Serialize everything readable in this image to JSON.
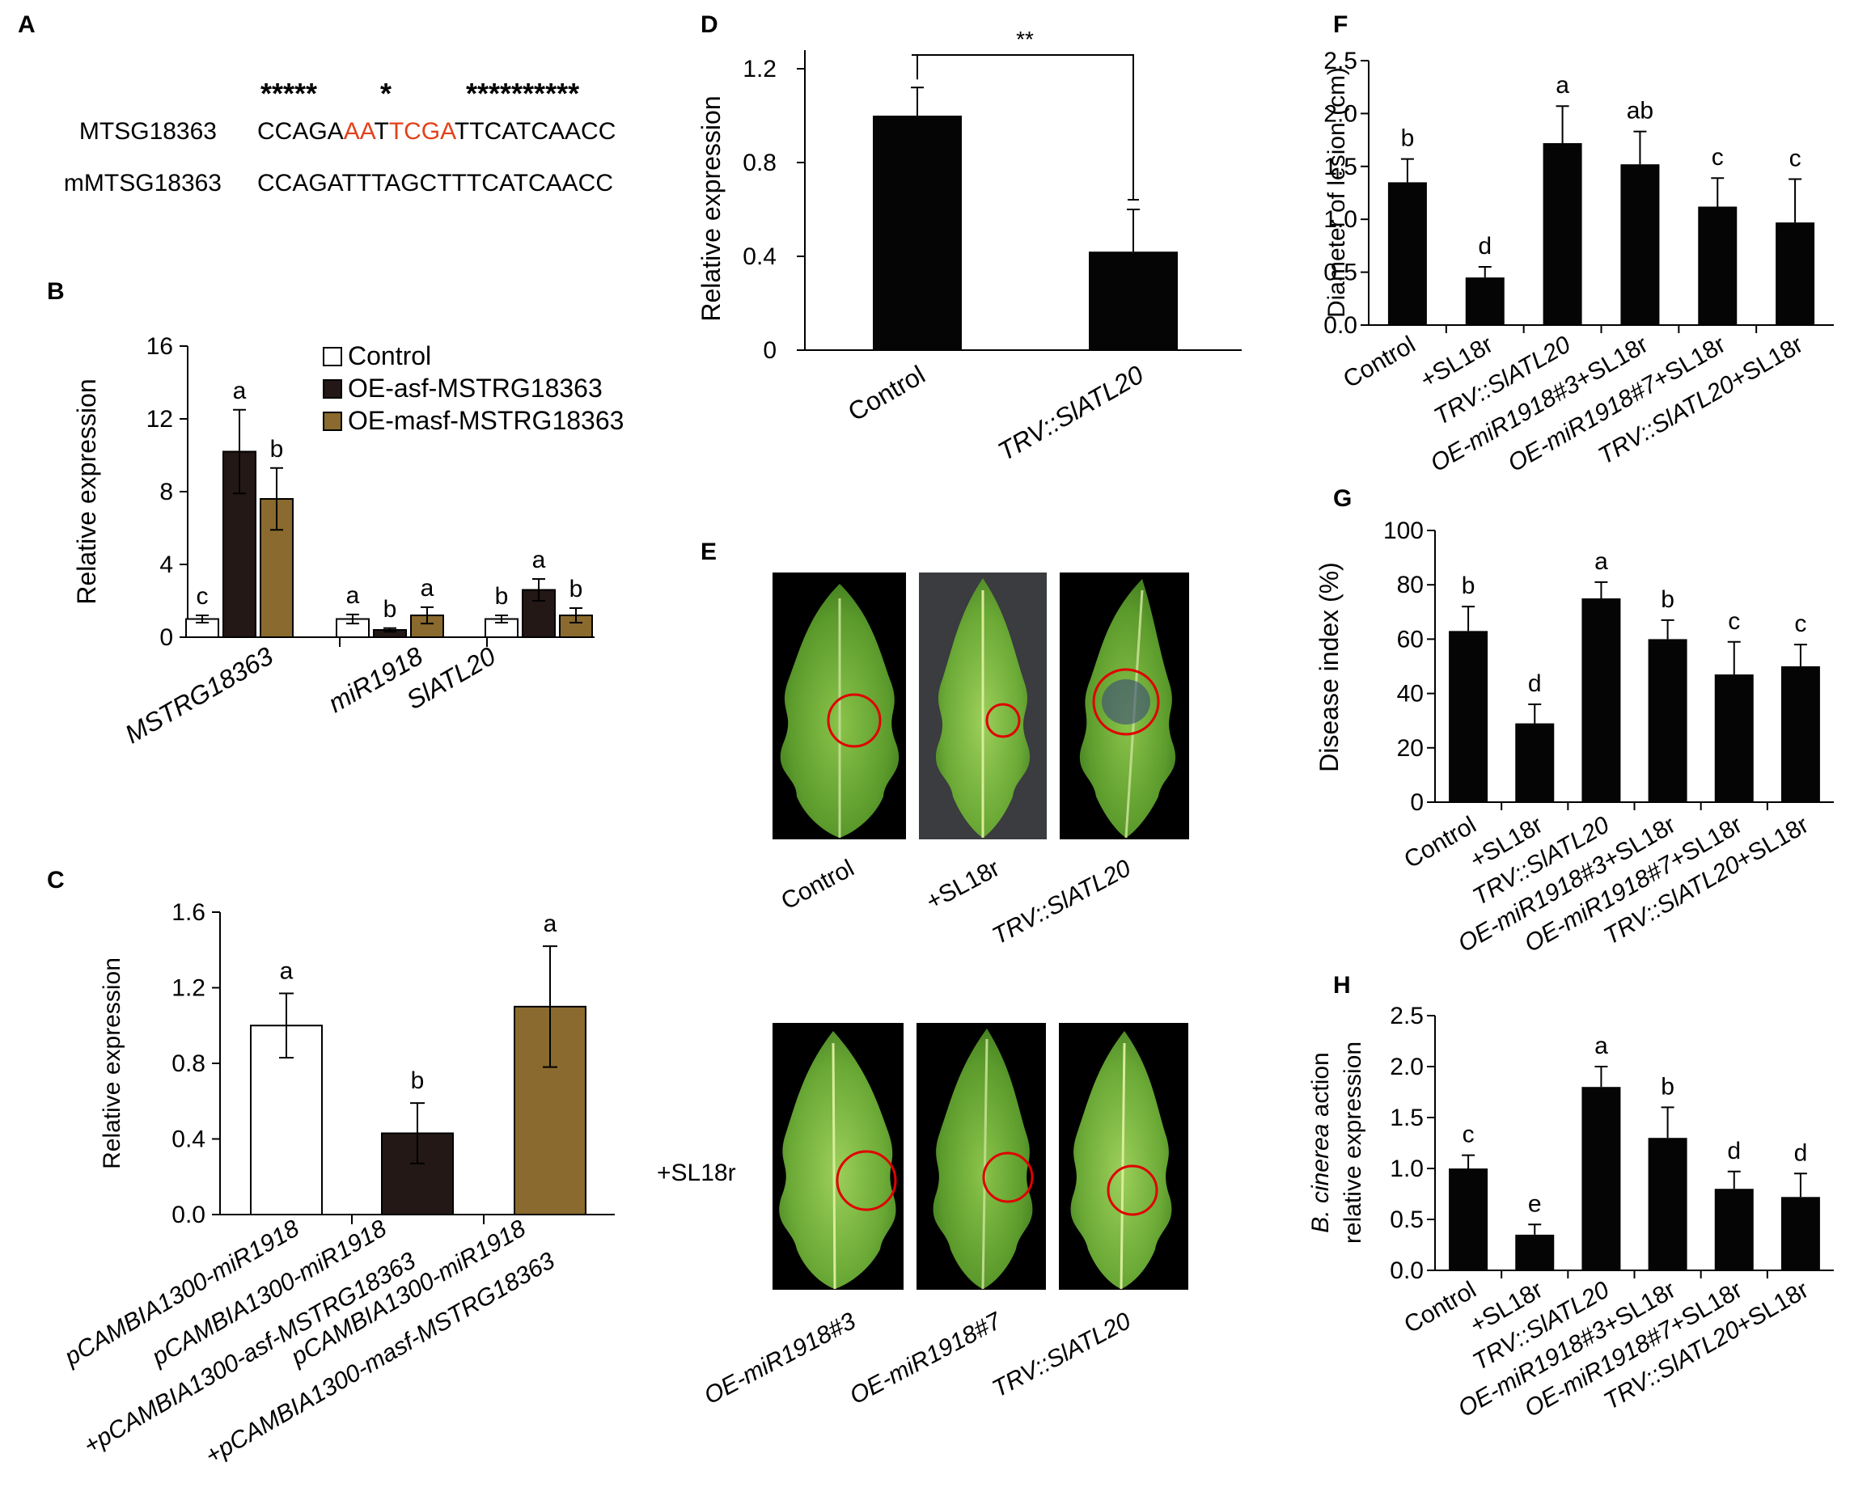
{
  "colors": {
    "control_fill": "#ffffff",
    "asf_fill": "#231816",
    "masf_fill": "#8a6a2e",
    "black_bar": "#050505",
    "highlight_red": "#e2421b",
    "circle_red": "#e00000",
    "photo_bg": "#000000",
    "photo_bg_gray": "#3a3c3f",
    "leaf_green": "#5c9b2c"
  },
  "panel_A": {
    "letter": "A",
    "stars_left": "*****",
    "stars_mid": "*",
    "stars_right": "**********",
    "seq1_label": "MTSG18363",
    "seq1_part1": "CCAGA",
    "seq1_part2": "AA",
    "seq1_part3": "T",
    "seq1_part4": "TCGA",
    "seq1_part5": "TTCATCAACC",
    "seq2_label": "mMTSG18363",
    "seq2": "CCAGATTTAGCTTTCATCAACC"
  },
  "panel_E": {
    "letter": "E",
    "top_labels": [
      "Control",
      "+SL18r",
      "TRV::SlATL20"
    ],
    "row_label": "+SL18r",
    "bottom_labels": [
      "OE-miR1918#3",
      "OE-miR1918#7",
      "TRV::SlATL20"
    ]
  },
  "chart_data": [
    {
      "panel": "B",
      "type": "bar",
      "ylabel": "Relative expression",
      "ylim": [
        0,
        16
      ],
      "yticks": [
        "0",
        "4",
        "8",
        "12",
        "16"
      ],
      "categories": [
        "MSTRG18363",
        "miR1918",
        "SlATL20"
      ],
      "legend_placement": "top-right",
      "series": [
        {
          "name": "Control",
          "values": [
            1.0,
            1.0,
            1.0
          ],
          "errors": [
            0.2,
            0.25,
            0.2
          ],
          "letters": [
            "c",
            "a",
            "b"
          ],
          "color": "#ffffff"
        },
        {
          "name": "OE-asf-MSTRG18363",
          "values": [
            10.2,
            0.4,
            2.6
          ],
          "errors": [
            2.3,
            0.1,
            0.6
          ],
          "letters": [
            "a",
            "b",
            "a"
          ],
          "color": "#231816"
        },
        {
          "name": "OE-masf-MSTRG18363",
          "values": [
            7.6,
            1.2,
            1.2
          ],
          "errors": [
            1.7,
            0.45,
            0.4
          ],
          "letters": [
            "b",
            "a",
            "b"
          ],
          "color": "#8a6a2e"
        }
      ]
    },
    {
      "panel": "C",
      "type": "bar",
      "ylabel": "Relative expression",
      "ylim": [
        0,
        1.6
      ],
      "yticks": [
        "0.0",
        "0.4",
        "0.8",
        "1.2",
        "1.6"
      ],
      "categories": [
        [
          "pCAMBIA1300-miR1918"
        ],
        [
          "pCAMBIA1300-miR1918",
          "+pCAMBIA1300-asf-MSTRG18363"
        ],
        [
          "pCAMBIA1300-miR1918",
          "+pCAMBIA1300-masf-MSTRG18363"
        ]
      ],
      "values": [
        1.0,
        0.43,
        1.1
      ],
      "errors": [
        0.17,
        0.16,
        0.32
      ],
      "letters": [
        "a",
        "b",
        "a"
      ],
      "colors": [
        "#ffffff",
        "#231816",
        "#8a6a2e"
      ]
    },
    {
      "panel": "D",
      "type": "bar",
      "ylabel": "Relative expression",
      "ylim": [
        0,
        1.2
      ],
      "yticks": [
        "0",
        "0.4",
        "0.8",
        "1.2"
      ],
      "categories": [
        "Control",
        "TRV::SlATL20"
      ],
      "values": [
        1.0,
        0.42
      ],
      "errors": [
        0.12,
        0.18
      ],
      "significance": "**"
    },
    {
      "panel": "F",
      "type": "bar",
      "ylabel": "Diameter of lesion (cm)",
      "ylim": [
        0,
        2.5
      ],
      "yticks": [
        "0.0",
        "0.5",
        "1.0",
        "1.5",
        "2.0",
        "2.5"
      ],
      "categories": [
        "Control",
        "+SL18r",
        "TRV::SlATL20",
        "OE-miR1918#3+SL18r",
        "OE-miR1918#7+SL18r",
        "TRV::SlATL20+SL18r"
      ],
      "values": [
        1.35,
        0.45,
        1.72,
        1.52,
        1.12,
        0.97
      ],
      "errors": [
        0.22,
        0.1,
        0.35,
        0.31,
        0.27,
        0.41
      ],
      "letters": [
        "b",
        "d",
        "a",
        "ab",
        "c",
        "c"
      ]
    },
    {
      "panel": "G",
      "type": "bar",
      "ylabel": "Disease index (%)",
      "ylim": [
        0,
        100
      ],
      "yticks": [
        "0",
        "20",
        "40",
        "60",
        "80",
        "100"
      ],
      "categories": [
        "Control",
        "+SL18r",
        "TRV::SlATL20",
        "OE-miR1918#3+SL18r",
        "OE-miR1918#7+SL18r",
        "TRV::SlATL20+SL18r"
      ],
      "values": [
        63,
        29,
        75,
        60,
        47,
        50
      ],
      "errors": [
        9,
        7,
        6,
        7,
        12,
        8
      ],
      "letters": [
        "b",
        "d",
        "a",
        "b",
        "c",
        "c"
      ]
    },
    {
      "panel": "H",
      "type": "bar",
      "ylabel_line1": "B. cinerea action",
      "ylabel_line2": "relative expression",
      "ylim": [
        0,
        2.5
      ],
      "yticks": [
        "0.0",
        "0.5",
        "1.0",
        "1.5",
        "2.0",
        "2.5"
      ],
      "categories": [
        "Control",
        "+SL18r",
        "TRV::SlATL20",
        "OE-miR1918#3+SL18r",
        "OE-miR1918#7+SL18r",
        "TRV::SlATL20+SL18r"
      ],
      "values": [
        1.0,
        0.35,
        1.8,
        1.3,
        0.8,
        0.72
      ],
      "errors": [
        0.13,
        0.1,
        0.2,
        0.3,
        0.17,
        0.23
      ],
      "letters": [
        "c",
        "e",
        "a",
        "b",
        "d",
        "d"
      ]
    }
  ]
}
